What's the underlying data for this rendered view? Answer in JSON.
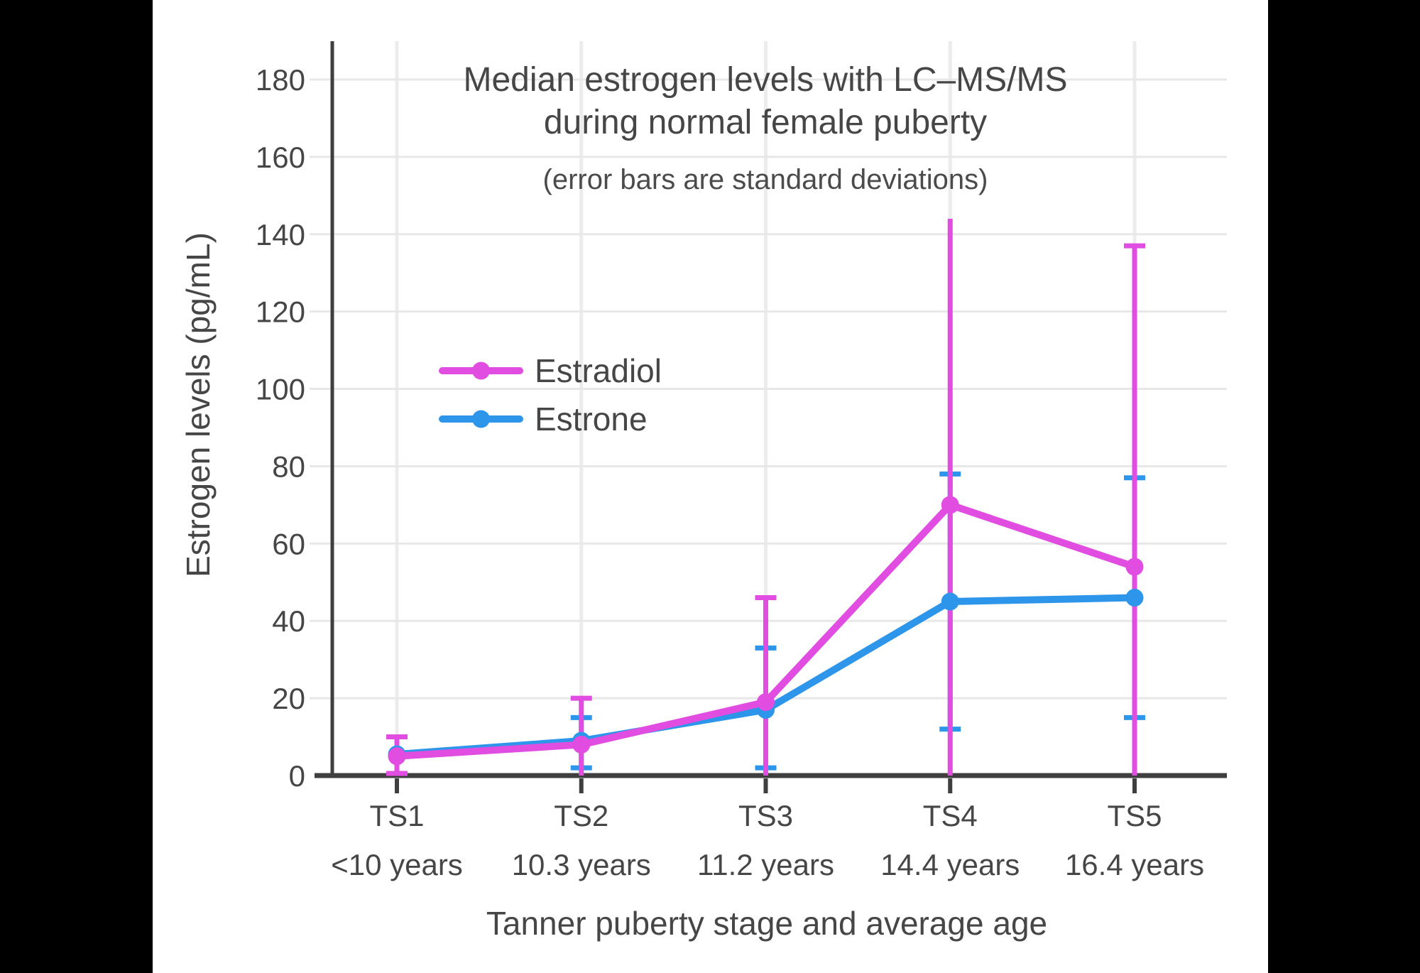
{
  "colors": {
    "letterbox": "#000000",
    "panel": "#ffffff",
    "text": "#464646",
    "axis": "#3f3f3f",
    "grid_horizontal": "#e8e8e8",
    "grid_vertical": "#ececec",
    "estradiol": "#e14ce1",
    "estrone": "#2e96ea"
  },
  "chart_data": {
    "type": "line",
    "title_line1": "Median estrogen levels with LC–MS/MS",
    "title_line2": "during normal female puberty",
    "subtitle": "(error bars are standard deviations)",
    "xlabel": "Tanner puberty stage and average age",
    "ylabel": "Estrogen levels (pg/mL)",
    "categories": [
      "TS1",
      "TS2",
      "TS3",
      "TS4",
      "TS5"
    ],
    "category_ages": [
      "<10 years",
      "10.3 years",
      "11.2 years",
      "14.4 years",
      "16.4 years"
    ],
    "y_ticks": [
      0,
      20,
      40,
      60,
      80,
      100,
      120,
      140,
      160,
      180
    ],
    "ylim": [
      0,
      190
    ],
    "grid": true,
    "legend_position": "inside-upper-left",
    "error_bar_note": "whiskers below zero are clipped at the x-axis",
    "series": [
      {
        "name": "Estradiol",
        "color": "#e14ce1",
        "marker": "circle",
        "values": [
          5,
          8,
          19,
          70,
          54
        ],
        "whisker_top": [
          10,
          20,
          46,
          144,
          137
        ],
        "whisker_bottom": [
          0,
          0,
          0,
          0,
          0
        ],
        "top_cap": [
          true,
          true,
          true,
          false,
          true
        ],
        "bottom_cap": [
          true,
          false,
          false,
          false,
          false
        ]
      },
      {
        "name": "Estrone",
        "color": "#2e96ea",
        "marker": "circle",
        "values": [
          5.5,
          9,
          17,
          45,
          46
        ],
        "whisker_top": [
          null,
          15,
          33,
          78,
          77
        ],
        "whisker_bottom": [
          null,
          2,
          2,
          12,
          15
        ],
        "top_cap": [
          false,
          true,
          true,
          true,
          true
        ],
        "bottom_cap": [
          false,
          true,
          true,
          true,
          true
        ]
      }
    ]
  }
}
